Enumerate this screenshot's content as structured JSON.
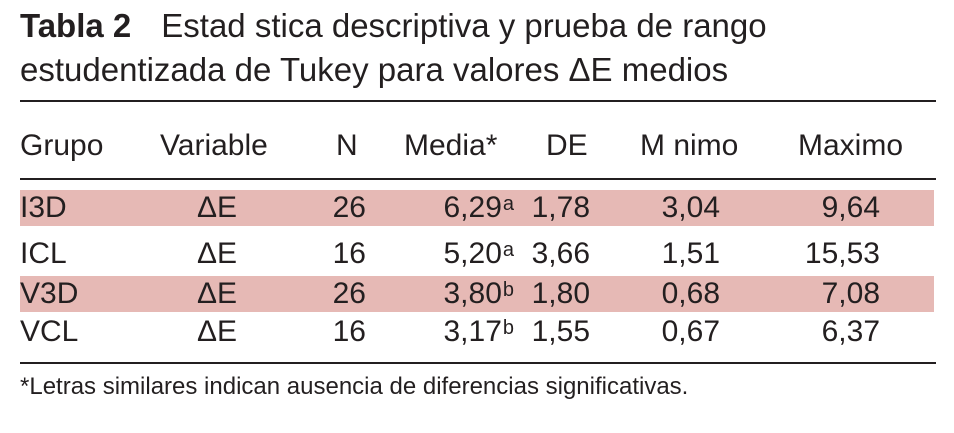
{
  "title": {
    "label": "Tabla 2",
    "line1": "Estad stica descriptiva y prueba de rango",
    "line2": "estudentizada de Tukey para valores ΔE medios"
  },
  "table": {
    "headers": {
      "grupo": "Grupo",
      "variable": "Variable",
      "n": "N",
      "media": "Media*",
      "de": "DE",
      "minimo": "M nimo",
      "maximo": "Maximo"
    },
    "rows": [
      {
        "grupo": "I3D",
        "variable": "ΔE",
        "n": "26",
        "media": "6,29",
        "media_sup": "a",
        "de": "1,78",
        "minimo": "3,04",
        "maximo": "9,64",
        "shaded": true
      },
      {
        "grupo": "ICL",
        "variable": "ΔE",
        "n": "16",
        "media": "5,20",
        "media_sup": "a",
        "de": "3,66",
        "minimo": "1,51",
        "maximo": "15,53",
        "shaded": false
      },
      {
        "grupo": "V3D",
        "variable": "ΔE",
        "n": "26",
        "media": "3,80",
        "media_sup": "b",
        "de": "1,80",
        "minimo": "0,68",
        "maximo": "7,08",
        "shaded": true
      },
      {
        "grupo": "VCL",
        "variable": "ΔE",
        "n": "16",
        "media": "3,17",
        "media_sup": "b",
        "de": "1,55",
        "minimo": "0,67",
        "maximo": "6,37",
        "shaded": false
      }
    ]
  },
  "footnote": "*Letras similares indican ausencia de diferencias significativas.",
  "colors": {
    "row_shading": "#e6b9b5",
    "text": "#231f20"
  }
}
